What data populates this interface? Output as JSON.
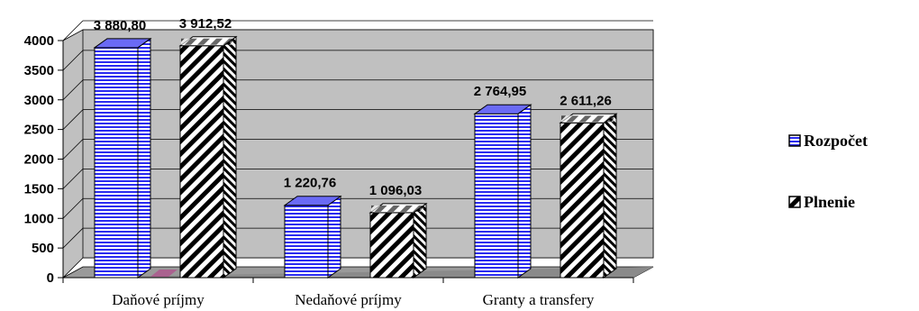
{
  "chart_data": {
    "type": "bar",
    "categories": [
      "Daňové príjmy",
      "Nedaňové príjmy",
      "Granty a transfery"
    ],
    "series": [
      {
        "name": "Rozpočet",
        "values": [
          3880.8,
          1220.76,
          2764.95
        ],
        "labels": [
          "3 880,80",
          "1 220,76",
          "2 764,95"
        ],
        "color": "#2b2bf0",
        "pattern": "horizontal-stripes"
      },
      {
        "name": "Plnenie",
        "values": [
          3912.52,
          1096.03,
          2611.26
        ],
        "labels": [
          "3 912,52",
          "1 096,03",
          "2 611,26"
        ],
        "color": "#000000",
        "pattern": "diagonal-stripes"
      }
    ],
    "ylim": [
      0,
      4000
    ],
    "yticks": [
      "0",
      "500",
      "1000",
      "1500",
      "2000",
      "2500",
      "3000",
      "3500",
      "4000"
    ],
    "grid": true,
    "legend_position": "right",
    "plot_background": "#c0c0c0",
    "title": "",
    "xlabel": "",
    "ylabel": ""
  }
}
